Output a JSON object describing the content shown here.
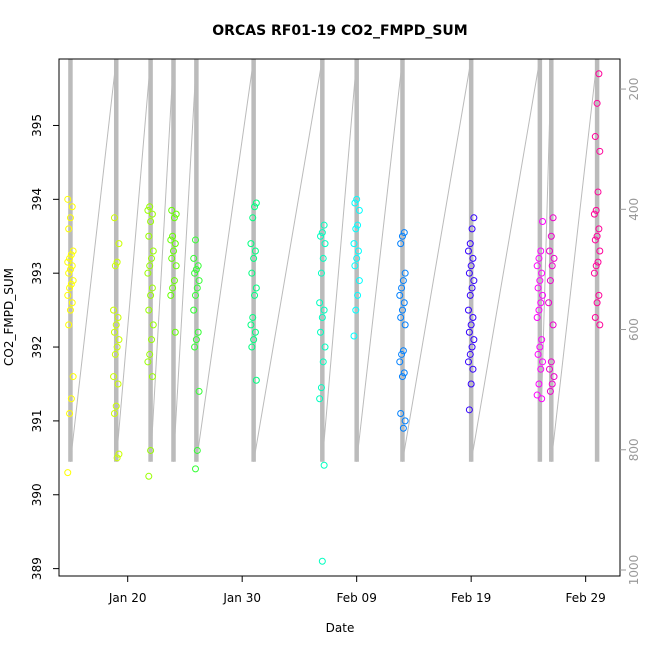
{
  "chart_data": {
    "type": "scatter",
    "title": "ORCAS RF01-19 CO2_FMPD_SUM",
    "xlabel": "Date",
    "ylabel": "CO2_FMPD_SUM",
    "x_ticks": [
      "Jan 20",
      "Jan 30",
      "Feb 09",
      "Feb 19",
      "Feb 29"
    ],
    "x_tick_values": [
      "2016-01-20",
      "2016-01-30",
      "2016-02-09",
      "2016-02-19",
      "2016-02-29"
    ],
    "xlim": [
      "2016-01-14",
      "2016-03-03"
    ],
    "ylim": [
      388.9,
      395.9
    ],
    "y_ticks": [
      389,
      390,
      391,
      392,
      393,
      394,
      395
    ],
    "right_axis": {
      "ylim": [
        1010,
        150
      ],
      "ticks": [
        200,
        400,
        600,
        800,
        1000
      ],
      "color": "#999999"
    },
    "grid": false,
    "legend": "none",
    "series": [
      {
        "date": "2016-01-15",
        "color": "#ffff00",
        "values": [
          390.3,
          391.1,
          391.3,
          391.6,
          392.3,
          392.5,
          392.6,
          392.7,
          392.8,
          392.85,
          392.9,
          393.0,
          393.05,
          393.1,
          393.15,
          393.2,
          393.25,
          393.3,
          393.6,
          393.75,
          393.9,
          394.0
        ]
      },
      {
        "date": "2016-01-19",
        "color": "#ccff00",
        "values": [
          390.5,
          390.55,
          391.1,
          391.2,
          391.5,
          391.6,
          391.9,
          392.0,
          392.1,
          392.2,
          392.3,
          392.4,
          392.5,
          393.1,
          393.15,
          393.4,
          393.75
        ]
      },
      {
        "date": "2016-01-22",
        "color": "#99ff00",
        "values": [
          390.25,
          390.6,
          391.6,
          391.8,
          391.9,
          392.1,
          392.3,
          392.5,
          392.7,
          392.8,
          393.0,
          393.1,
          393.2,
          393.3,
          393.5,
          393.7,
          393.8,
          393.85,
          393.9
        ]
      },
      {
        "date": "2016-01-24",
        "color": "#66ff00",
        "values": [
          392.2,
          392.7,
          392.8,
          392.9,
          393.1,
          393.2,
          393.3,
          393.4,
          393.45,
          393.5,
          393.75,
          393.8,
          393.85
        ]
      },
      {
        "date": "2016-01-26",
        "color": "#33ff33",
        "values": [
          390.35,
          390.6,
          391.4,
          392.0,
          392.1,
          392.2,
          392.5,
          392.7,
          392.8,
          392.9,
          393.0,
          393.05,
          393.1,
          393.2,
          393.45
        ]
      },
      {
        "date": "2016-01-31",
        "color": "#00ff80",
        "values": [
          391.55,
          392.0,
          392.1,
          392.2,
          392.3,
          392.4,
          392.7,
          392.8,
          393.0,
          393.2,
          393.3,
          393.4,
          393.75,
          393.9,
          393.95
        ]
      },
      {
        "date": "2016-02-06",
        "color": "#00ffc0",
        "values": [
          389.1,
          390.4,
          391.3,
          391.45,
          391.8,
          392.0,
          392.2,
          392.4,
          392.5,
          392.6,
          393.0,
          393.2,
          393.4,
          393.5,
          393.55,
          393.65
        ]
      },
      {
        "date": "2016-02-09",
        "color": "#00ffff",
        "values": [
          392.15,
          392.5,
          392.7,
          392.9,
          393.1,
          393.2,
          393.3,
          393.4,
          393.6,
          393.65,
          393.85,
          393.95,
          394.0
        ]
      },
      {
        "date": "2016-02-13",
        "color": "#0080ff",
        "values": [
          390.9,
          391.0,
          391.1,
          391.6,
          391.65,
          391.8,
          391.9,
          391.95,
          392.3,
          392.4,
          392.5,
          392.6,
          392.7,
          392.8,
          392.9,
          393.0,
          393.4,
          393.5,
          393.55
        ]
      },
      {
        "date": "2016-02-19",
        "color": "#3300ff",
        "values": [
          391.15,
          391.5,
          391.7,
          391.8,
          391.9,
          392.0,
          392.1,
          392.2,
          392.3,
          392.4,
          392.5,
          392.7,
          392.8,
          392.9,
          393.0,
          393.1,
          393.2,
          393.3,
          393.4,
          393.6,
          393.75
        ]
      },
      {
        "date": "2016-02-25",
        "color": "#ff00ff",
        "values": [
          391.3,
          391.35,
          391.5,
          391.7,
          391.8,
          391.9,
          392.0,
          392.1,
          392.4,
          392.5,
          392.6,
          392.7,
          392.8,
          392.9,
          393.0,
          393.1,
          393.2,
          393.3,
          393.7
        ]
      },
      {
        "date": "2016-02-26",
        "color": "#ee00cc",
        "values": [
          391.4,
          391.5,
          391.6,
          391.7,
          391.8,
          392.3,
          392.6,
          392.9,
          393.1,
          393.2,
          393.3,
          393.5,
          393.75
        ]
      },
      {
        "date": "2016-03-01",
        "color": "#ff0099",
        "values": [
          392.3,
          392.4,
          392.6,
          392.7,
          393.0,
          393.1,
          393.15,
          393.3,
          393.45,
          393.5,
          393.6,
          393.8,
          393.85,
          394.1,
          394.65,
          394.85,
          395.3,
          395.7
        ]
      }
    ],
    "altitude_trace": {
      "color": "#bbbbbb",
      "axis": "right",
      "flights": [
        {
          "date": "2016-01-15",
          "top": 150,
          "bottom": 820
        },
        {
          "date": "2016-01-19",
          "top": 150,
          "bottom": 820
        },
        {
          "date": "2016-01-22",
          "top": 150,
          "bottom": 820
        },
        {
          "date": "2016-01-24",
          "top": 150,
          "bottom": 820
        },
        {
          "date": "2016-01-26",
          "top": 150,
          "bottom": 820
        },
        {
          "date": "2016-01-31",
          "top": 150,
          "bottom": 820
        },
        {
          "date": "2016-02-06",
          "top": 150,
          "bottom": 820
        },
        {
          "date": "2016-02-09",
          "top": 150,
          "bottom": 820
        },
        {
          "date": "2016-02-13",
          "top": 150,
          "bottom": 820
        },
        {
          "date": "2016-02-19",
          "top": 150,
          "bottom": 820
        },
        {
          "date": "2016-02-25",
          "top": 150,
          "bottom": 820
        },
        {
          "date": "2016-02-26",
          "top": 150,
          "bottom": 820
        },
        {
          "date": "2016-03-01",
          "top": 150,
          "bottom": 820
        }
      ]
    }
  }
}
